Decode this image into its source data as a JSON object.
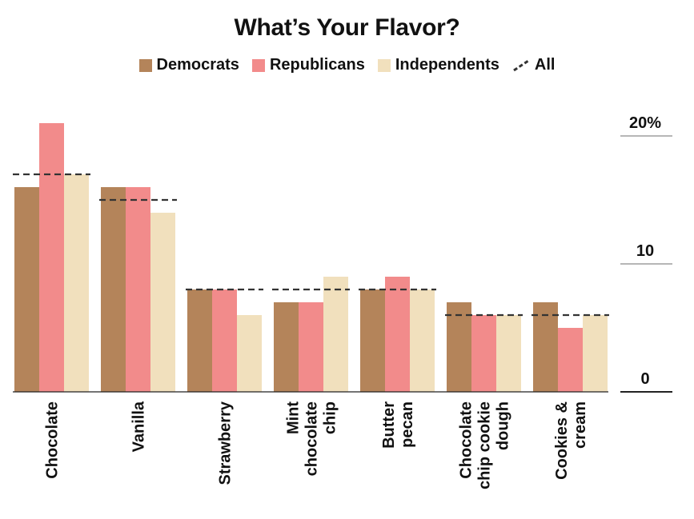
{
  "chart_data": {
    "type": "bar",
    "title": "What’s Your Flavor?",
    "categories": [
      [
        "Chocolate"
      ],
      [
        "Vanilla"
      ],
      [
        "Strawberry"
      ],
      [
        "Mint",
        "chocolate",
        "chip"
      ],
      [
        "Butter",
        "pecan"
      ],
      [
        "Chocolate",
        "chip cookie",
        "dough"
      ],
      [
        "Cookies &",
        "cream"
      ]
    ],
    "series": [
      {
        "name": "Democrats",
        "color": "#b4845a",
        "values": [
          16,
          16,
          8,
          7,
          8,
          7,
          7
        ]
      },
      {
        "name": "Republicans",
        "color": "#f28b8b",
        "values": [
          21,
          16,
          8,
          7,
          9,
          6,
          5
        ]
      },
      {
        "name": "Independents",
        "color": "#f1e0bd",
        "values": [
          17,
          14,
          6,
          9,
          8,
          6,
          6
        ]
      }
    ],
    "all": {
      "name": "All",
      "values": [
        17,
        15,
        8,
        8,
        8,
        6,
        6
      ],
      "color": "#333333"
    },
    "y_ticks": [
      {
        "value": 0,
        "label": "0"
      },
      {
        "value": 10,
        "label": "10"
      },
      {
        "value": 20,
        "label": "20%"
      }
    ],
    "ylim": [
      0,
      21
    ],
    "y_axis_side": "right",
    "legend_position": "top-center",
    "grid": false
  }
}
